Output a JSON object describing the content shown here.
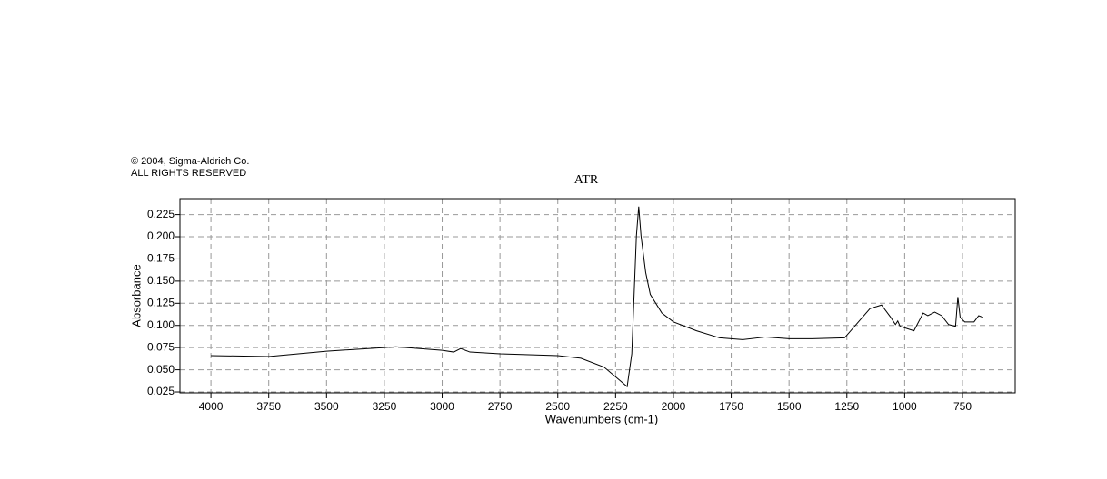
{
  "chart_data": {
    "type": "line",
    "title": "ATR",
    "annotations": [
      "© 2004, Sigma-Aldrich Co.",
      "ALL RIGHTS RESERVED"
    ],
    "x_label": "Wavenumbers (cm-1)",
    "y_label": "Absorbance",
    "xlim": [
      4134,
      522
    ],
    "ylim": [
      0.024,
      0.243
    ],
    "xticks": [
      4000,
      3750,
      3500,
      3250,
      3000,
      2750,
      2500,
      2250,
      2000,
      1750,
      1500,
      1250,
      1000,
      750
    ],
    "yticks": [
      0.025,
      {
        "value": 0.05,
        "label": "0.050"
      },
      0.075,
      {
        "value": 0.1,
        "label": "0.100"
      },
      0.125,
      {
        "value": 0.15,
        "label": "0.150"
      },
      0.175,
      {
        "value": 0.2,
        "label": "0.200"
      },
      0.225
    ],
    "grid": true,
    "series": [
      {
        "color": "#000000",
        "x": [
          4000,
          3750,
          3500,
          3250,
          3200,
          3000,
          2950,
          2920,
          2880,
          2750,
          2500,
          2400,
          2300,
          2250,
          2200,
          2180,
          2160,
          2150,
          2140,
          2120,
          2100,
          2050,
          2000,
          1900,
          1800,
          1700,
          1600,
          1500,
          1400,
          1260,
          1200,
          1150,
          1100,
          1060,
          1040,
          1030,
          1020,
          960,
          920,
          900,
          870,
          840,
          810,
          780,
          770,
          760,
          740,
          700,
          680,
          660
        ],
        "values": [
          0.066,
          0.065,
          0.071,
          0.075,
          0.076,
          0.072,
          0.07,
          0.074,
          0.07,
          0.068,
          0.066,
          0.063,
          0.053,
          0.042,
          0.031,
          0.068,
          0.201,
          0.234,
          0.201,
          0.16,
          0.135,
          0.114,
          0.104,
          0.094,
          0.086,
          0.084,
          0.087,
          0.085,
          0.085,
          0.086,
          0.104,
          0.119,
          0.123,
          0.109,
          0.101,
          0.105,
          0.099,
          0.094,
          0.114,
          0.111,
          0.115,
          0.111,
          0.101,
          0.099,
          0.132,
          0.109,
          0.104,
          0.104,
          0.111,
          0.109
        ]
      }
    ]
  }
}
